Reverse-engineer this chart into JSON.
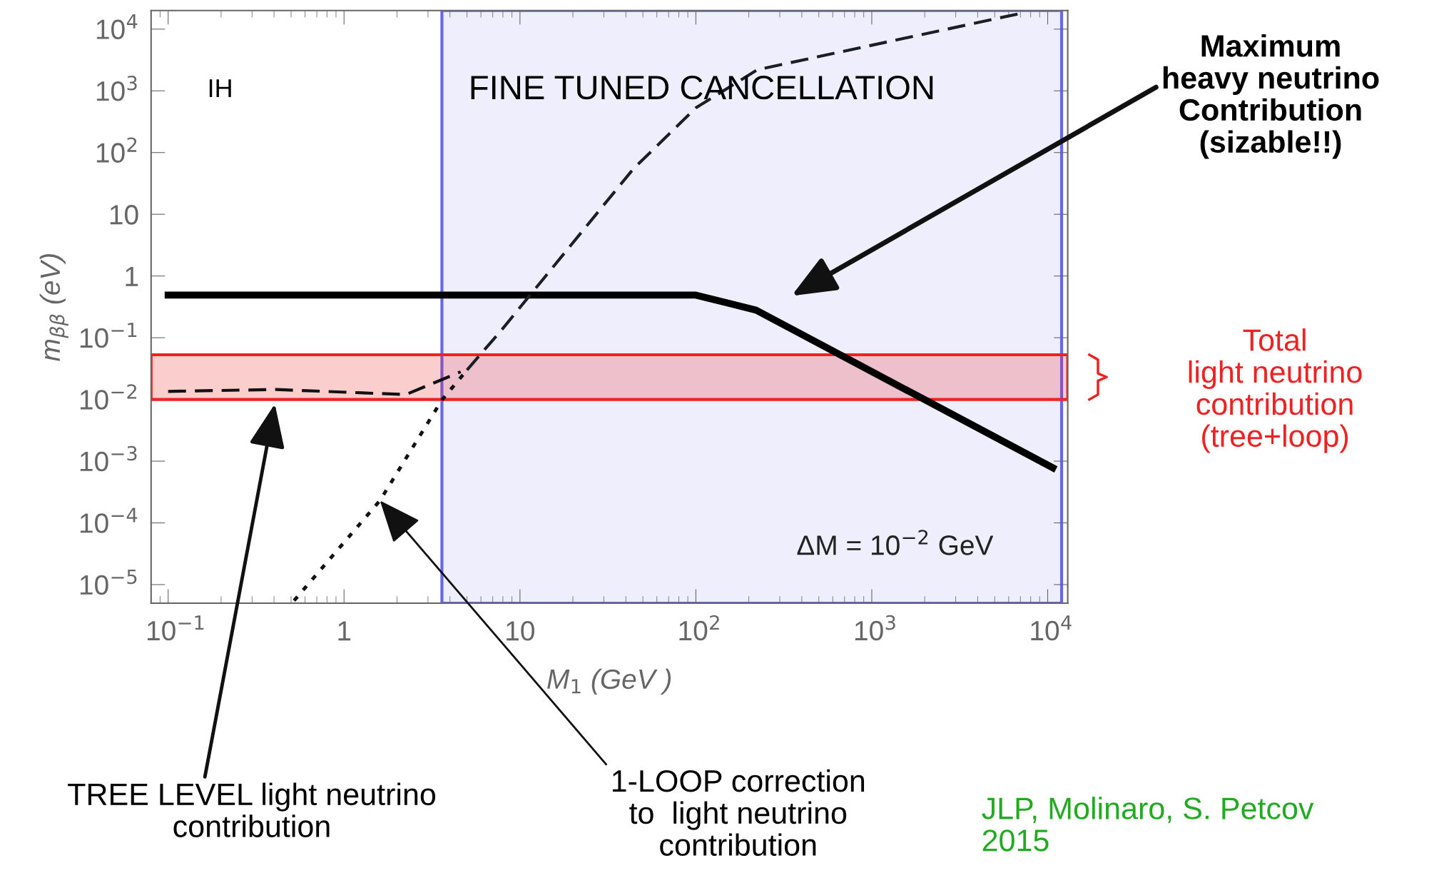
{
  "chart_data": {
    "type": "line",
    "xlabel": "M$_{1}$ (GeV )",
    "ylabel": "m$_{ββ}$ (eV)",
    "log": "xy",
    "xlim": [
      0.08,
      13000
    ],
    "ylim": [
      5e-06,
      20000
    ],
    "xticks": [
      {
        "value": 0.1,
        "label": "10$^{−1}$"
      },
      1,
      10,
      {
        "value": 100,
        "label": "10$^{2}$"
      },
      {
        "value": 1000,
        "label": "10$^{3}$"
      },
      {
        "value": 10000,
        "label": "10$^{4}$"
      }
    ],
    "yticks": [
      {
        "value": 1e-05,
        "label": "10$^{−5}$"
      },
      {
        "value": 0.0001,
        "label": "10$^{−4}$"
      },
      {
        "value": 0.001,
        "label": "10$^{−3}$"
      },
      {
        "value": 0.01,
        "label": "10$^{−2}$"
      },
      {
        "value": 0.1,
        "label": "10$^{−1}$"
      },
      1,
      10,
      {
        "value": 100,
        "label": "10$^{2}$"
      },
      {
        "value": 1000,
        "label": "10$^{3}$"
      },
      {
        "value": 10000,
        "label": "10$^{4}$"
      }
    ],
    "grid": false,
    "series": [
      {
        "color": "#000000",
        "line_style": "solid",
        "x": [
          0.1,
          100,
          220,
          10700
        ],
        "values": [
          0.49,
          0.49,
          0.28,
          0.00078
        ]
      },
      {
        "color": "#111111",
        "line_style": "dashed",
        "x": [
          0.1,
          0.41,
          2.24,
          4.6
        ],
        "values": [
          0.0135,
          0.0145,
          0.012,
          0.028
        ]
      },
      {
        "color": "#111111",
        "line_style": "dotted",
        "x": [
          0.52,
          1.6,
          3.6,
          5.0
        ],
        "values": [
          5.5e-06,
          0.00023,
          0.0098,
          0.03
        ]
      },
      {
        "color": "#1a1f26",
        "line_style": "dashed",
        "x": [
          5.0,
          7.8,
          44,
          100,
          224,
          6900
        ],
        "values": [
          0.03,
          0.13,
          54,
          530,
          2200,
          17800
        ]
      }
    ],
    "bands": [
      {
        "axis": "x",
        "from": 3.6,
        "to": 12000,
        "label": "FINE TUNED CANCELLATION",
        "color": "#6666ee"
      },
      {
        "axis": "y",
        "from": 0.01,
        "to": 0.053,
        "label": "Total\nlight neutrino\ncontribution\n(tree+loop)",
        "color": "#ee2222"
      }
    ],
    "annotations": [
      "IH",
      "ΔM = 10$^{−2}$ GeV",
      "Maximum\nheavy neutrino\nContribution\n(sizable!!)",
      "TREE LEVEL light neutrino\ncontribution",
      {
        "text": "1-LOOP correction\nto  light neutrino\ncontribution",
        "x": 1.6,
        "y": 0.00023
      },
      "JLP, Molinaro, S. Petcov\n2015"
    ]
  }
}
